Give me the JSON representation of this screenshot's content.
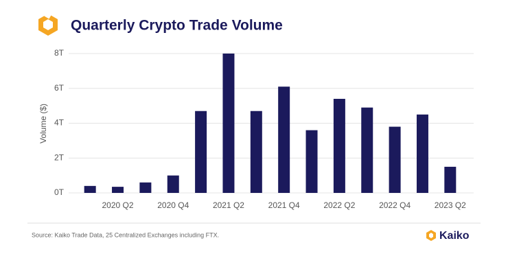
{
  "chart_data": {
    "type": "bar",
    "title": "Quarterly Crypto Trade Volume",
    "y_label": "Volume ($)",
    "source": "Source: Kaiko Trade Data, 25 Centralized Exchanges including FTX.",
    "brand": "Kaiko",
    "categories": [
      null,
      "2020 Q2",
      null,
      "2020 Q4",
      null,
      "2021 Q2",
      null,
      "2021 Q4",
      null,
      "2022 Q2",
      null,
      "2022 Q4",
      null,
      "2023 Q2"
    ],
    "values": [
      400000000000,
      350000000000,
      600000000000,
      1000000000000,
      4700000000000,
      8000000000000,
      4700000000000,
      6100000000000,
      3600000000000,
      5400000000000,
      4900000000000,
      3800000000000,
      4500000000000,
      1500000000000
    ],
    "color": "#1b1a5c",
    "ylim": [
      0,
      8000000000000
    ],
    "yticks": [
      {
        "value": 0,
        "label": "0T"
      },
      {
        "value": 2000000000000,
        "label": "2T"
      },
      {
        "value": 4000000000000,
        "label": "4T"
      },
      {
        "value": 6000000000000,
        "label": "6T"
      },
      {
        "value": 8000000000000,
        "label": "8T"
      }
    ],
    "grid": true
  }
}
